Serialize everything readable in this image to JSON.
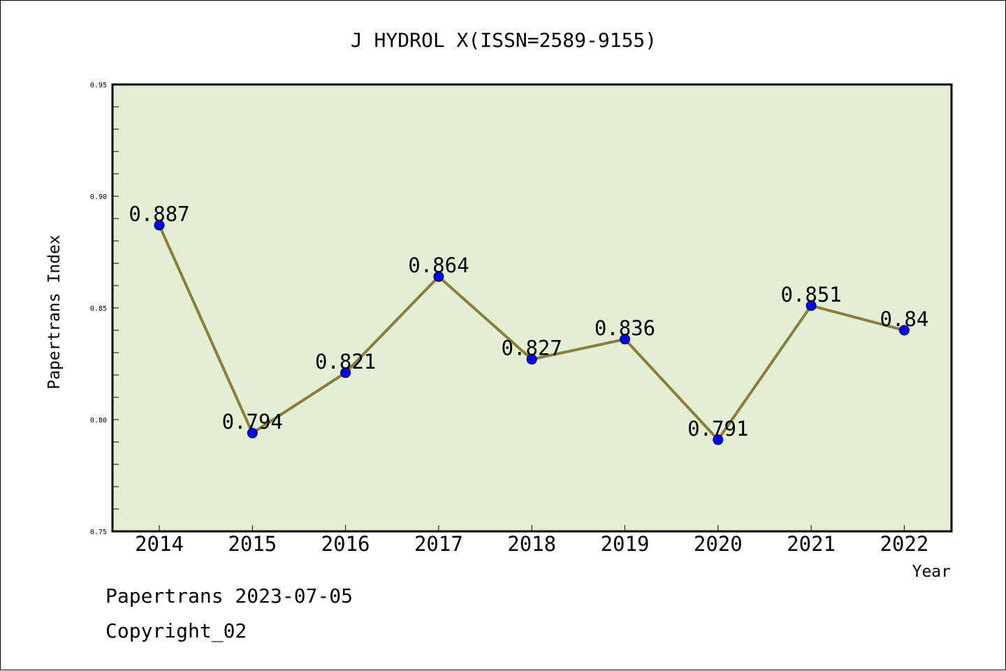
{
  "chart_data": {
    "type": "line",
    "title": "J HYDROL X(ISSN=2589-9155)",
    "xlabel": "Year",
    "ylabel": "Papertrans Index",
    "categories": [
      "2014",
      "2015",
      "2016",
      "2017",
      "2018",
      "2019",
      "2020",
      "2021",
      "2022"
    ],
    "series": [
      {
        "values": [
          0.887,
          0.794,
          0.821,
          0.864,
          0.827,
          0.836,
          0.791,
          0.851,
          0.84
        ],
        "data_labels": [
          "0.887",
          "0.794",
          "0.821",
          "0.864",
          "0.827",
          "0.836",
          "0.791",
          "0.851",
          "0.84"
        ]
      }
    ],
    "ylim": [
      0.75,
      0.95
    ],
    "yticks": [
      0.75,
      0.8,
      0.85,
      0.9,
      0.95
    ],
    "ytick_labels": [
      "0.75",
      "0.80",
      "0.85",
      "0.90",
      "0.95"
    ],
    "grid": false,
    "legend": "none",
    "colors": {
      "plot_background": "#e2efd5",
      "line": "#8b7d3a",
      "marker": "#0000ff"
    }
  },
  "footer": {
    "source": "Papertrans 2023-07-05",
    "copyright": "Copyright_02"
  }
}
